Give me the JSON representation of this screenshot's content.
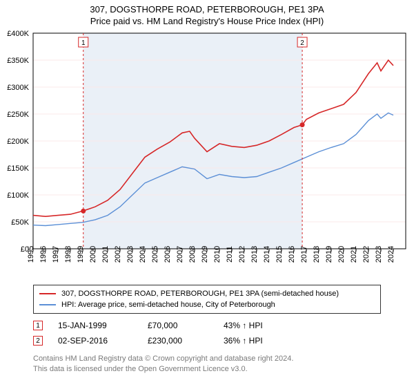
{
  "title_line1": "307, DOGSTHORPE ROAD, PETERBOROUGH, PE1 3PA",
  "title_line2": "Price paid vs. HM Land Registry's House Price Index (HPI)",
  "chart": {
    "type": "line",
    "background_shade_color": "#eaf0f7",
    "background_shade_x_range": [
      1999.04,
      2016.67
    ],
    "plot_bg": "#ffffff",
    "gridline_color": "#fbe8e8",
    "axis_color": "#000000",
    "x": {
      "min": 1995,
      "max": 2025,
      "ticks": [
        1995,
        1996,
        1997,
        1998,
        1999,
        2000,
        2001,
        2002,
        2003,
        2004,
        2005,
        2006,
        2007,
        2008,
        2009,
        2010,
        2011,
        2012,
        2013,
        2014,
        2015,
        2016,
        2017,
        2018,
        2019,
        2020,
        2021,
        2022,
        2023,
        2024
      ],
      "tick_labels": [
        "1995",
        "1996",
        "1997",
        "1998",
        "1999",
        "2000",
        "2001",
        "2002",
        "2003",
        "2004",
        "2005",
        "2006",
        "2007",
        "2008",
        "2009",
        "2010",
        "2011",
        "2012",
        "2013",
        "2014",
        "2015",
        "2016",
        "2017",
        "2018",
        "2019",
        "2020",
        "2021",
        "2022",
        "2023",
        "2024"
      ],
      "tick_fontsize": 11,
      "tick_rotation": -90
    },
    "y": {
      "min": 0,
      "max": 400000,
      "ticks": [
        0,
        50000,
        100000,
        150000,
        200000,
        250000,
        300000,
        350000,
        400000
      ],
      "tick_labels": [
        "£0",
        "£50K",
        "£100K",
        "£150K",
        "£200K",
        "£250K",
        "£300K",
        "£350K",
        "£400K"
      ],
      "tick_fontsize": 11
    },
    "series": [
      {
        "name": "property",
        "label": "307, DOGSTHORPE ROAD, PETERBOROUGH, PE1 3PA (semi-detached house)",
        "color": "#d62728",
        "line_width": 1.6,
        "data": [
          [
            1995,
            62000
          ],
          [
            1996,
            60000
          ],
          [
            1997,
            62000
          ],
          [
            1998,
            64000
          ],
          [
            1999,
            70000
          ],
          [
            2000,
            78000
          ],
          [
            2001,
            90000
          ],
          [
            2002,
            110000
          ],
          [
            2003,
            140000
          ],
          [
            2004,
            170000
          ],
          [
            2005,
            185000
          ],
          [
            2006,
            198000
          ],
          [
            2007,
            215000
          ],
          [
            2007.6,
            218000
          ],
          [
            2008,
            205000
          ],
          [
            2009,
            180000
          ],
          [
            2010,
            195000
          ],
          [
            2011,
            190000
          ],
          [
            2012,
            188000
          ],
          [
            2013,
            192000
          ],
          [
            2014,
            200000
          ],
          [
            2015,
            212000
          ],
          [
            2016,
            225000
          ],
          [
            2016.67,
            230000
          ],
          [
            2017,
            240000
          ],
          [
            2018,
            252000
          ],
          [
            2019,
            260000
          ],
          [
            2020,
            268000
          ],
          [
            2021,
            290000
          ],
          [
            2022,
            325000
          ],
          [
            2022.7,
            345000
          ],
          [
            2023,
            330000
          ],
          [
            2023.6,
            350000
          ],
          [
            2024,
            340000
          ]
        ]
      },
      {
        "name": "hpi",
        "label": "HPI: Average price, semi-detached house, City of Peterborough",
        "color": "#5b8fd6",
        "line_width": 1.4,
        "data": [
          [
            1995,
            44000
          ],
          [
            1996,
            43000
          ],
          [
            1997,
            45000
          ],
          [
            1998,
            47000
          ],
          [
            1999,
            49000
          ],
          [
            2000,
            54000
          ],
          [
            2001,
            62000
          ],
          [
            2002,
            78000
          ],
          [
            2003,
            100000
          ],
          [
            2004,
            122000
          ],
          [
            2005,
            132000
          ],
          [
            2006,
            142000
          ],
          [
            2007,
            152000
          ],
          [
            2008,
            148000
          ],
          [
            2009,
            130000
          ],
          [
            2010,
            138000
          ],
          [
            2011,
            134000
          ],
          [
            2012,
            132000
          ],
          [
            2013,
            134000
          ],
          [
            2014,
            142000
          ],
          [
            2015,
            150000
          ],
          [
            2016,
            160000
          ],
          [
            2017,
            170000
          ],
          [
            2018,
            180000
          ],
          [
            2019,
            188000
          ],
          [
            2020,
            195000
          ],
          [
            2021,
            212000
          ],
          [
            2022,
            238000
          ],
          [
            2022.7,
            250000
          ],
          [
            2023,
            242000
          ],
          [
            2023.6,
            252000
          ],
          [
            2024,
            248000
          ]
        ]
      }
    ],
    "sale_markers": [
      {
        "index": "1",
        "x": 1999.04,
        "y": 70000,
        "color": "#d62728"
      },
      {
        "index": "2",
        "x": 2016.67,
        "y": 230000,
        "color": "#d62728"
      }
    ]
  },
  "legend": {
    "border_color": "#333333",
    "items": [
      {
        "color": "#d62728",
        "label": "307, DOGSTHORPE ROAD, PETERBOROUGH, PE1 3PA (semi-detached house)"
      },
      {
        "color": "#5b8fd6",
        "label": "HPI: Average price, semi-detached house, City of Peterborough"
      }
    ]
  },
  "sales": [
    {
      "index": "1",
      "color": "#d62728",
      "date": "15-JAN-1999",
      "price": "£70,000",
      "pct": "43%",
      "arrow": "↑",
      "suffix": "HPI"
    },
    {
      "index": "2",
      "color": "#d62728",
      "date": "02-SEP-2016",
      "price": "£230,000",
      "pct": "36%",
      "arrow": "↑",
      "suffix": "HPI"
    }
  ],
  "attribution_line1": "Contains HM Land Registry data © Crown copyright and database right 2024.",
  "attribution_line2": "This data is licensed under the Open Government Licence v3.0."
}
